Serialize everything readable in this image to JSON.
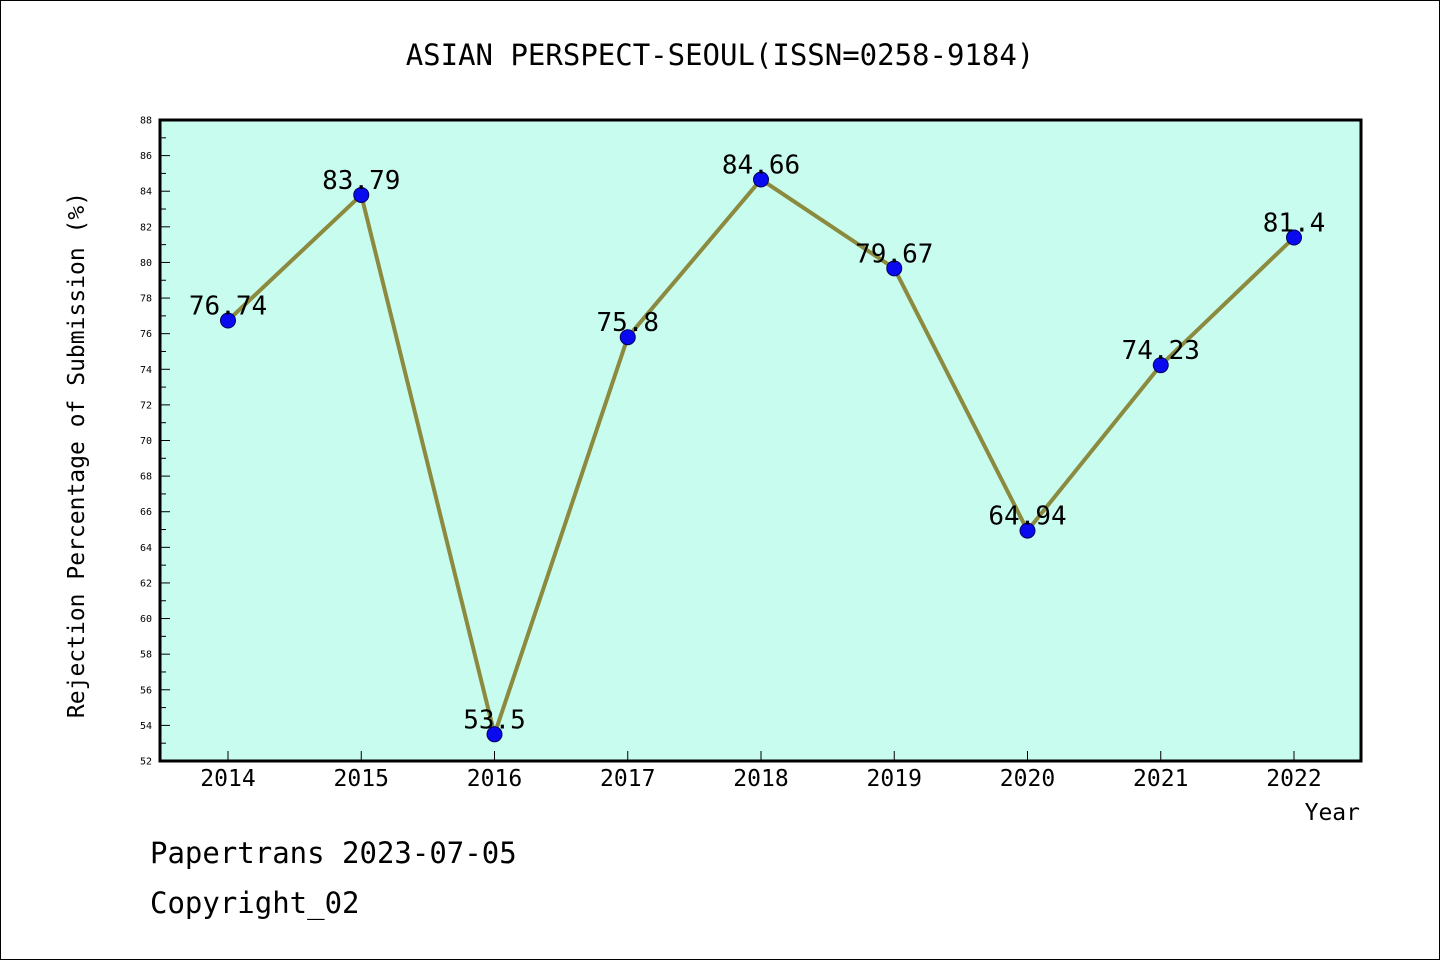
{
  "chart_data": {
    "type": "line",
    "title": "ASIAN PERSPECT-SEOUL(ISSN=0258-9184)",
    "xlabel": "Year",
    "ylabel": "Rejection Percentage of Submission (%)",
    "categories": [
      "2014",
      "2015",
      "2016",
      "2017",
      "2018",
      "2019",
      "2020",
      "2021",
      "2022"
    ],
    "values": [
      76.74,
      83.79,
      53.5,
      75.8,
      84.66,
      79.67,
      64.94,
      74.23,
      81.4
    ],
    "data_labels": [
      "76.74",
      "83.79",
      "53.5",
      "75.8",
      "84.66",
      "79.67",
      "64.94",
      "74.23",
      "81.4"
    ],
    "ylim": [
      52,
      88
    ],
    "yticks": [
      52,
      54,
      56,
      58,
      60,
      62,
      64,
      66,
      68,
      70,
      72,
      74,
      76,
      78,
      80,
      82,
      84,
      86,
      88
    ],
    "grid": false,
    "legend": "none",
    "colors": {
      "plot_background": "#c8fcee",
      "line": "#8b8a3e",
      "marker": "#0a0af0",
      "marker_edge": "#000060"
    }
  },
  "footer": {
    "line1": "Papertrans 2023-07-05",
    "line2": "Copyright_02"
  }
}
